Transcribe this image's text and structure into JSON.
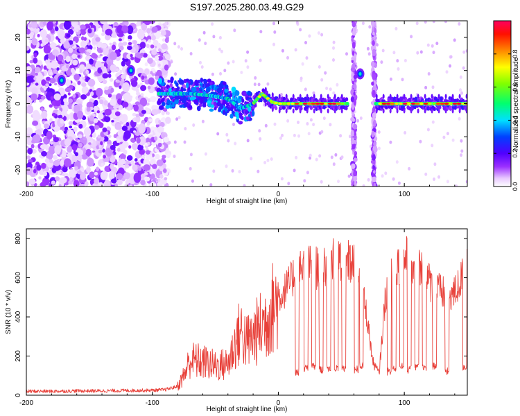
{
  "chart_data": [
    {
      "type": "heatmap",
      "title": "S197.2025.280.03.49.G29",
      "xlabel": "Height of straight line (km)",
      "ylabel": "Frequency (Hz)",
      "xlim": [
        -200,
        150
      ],
      "ylim": [
        -25,
        25
      ],
      "x_ticks": [
        -200,
        -100,
        0,
        100
      ],
      "y_ticks": [
        -20,
        -10,
        0,
        10,
        20
      ],
      "colorbar": {
        "label": "Normalized spectral amplitude",
        "range": [
          0,
          1
        ],
        "ticks": [
          "0.0",
          "0.2",
          "0.4",
          "0.6",
          "0.8"
        ],
        "tick_values": [
          0,
          0.2,
          0.4,
          0.6,
          0.8
        ]
      },
      "ridge": {
        "x": [
          -85,
          -70,
          -55,
          -40,
          -30,
          -20,
          -13,
          -5,
          0,
          20,
          40,
          55,
          80,
          100,
          120,
          150
        ],
        "freq": [
          3,
          3,
          2.5,
          1.5,
          -1.5,
          0,
          3,
          0.5,
          0,
          0,
          0,
          0,
          0,
          0,
          0,
          0
        ]
      },
      "noise_region_x": [
        -200,
        -95
      ],
      "vertical_streaks_x": [
        60,
        76
      ],
      "gap_x": [
        55,
        77
      ],
      "isolated_blobs": [
        {
          "x": -172,
          "freq": 7
        },
        {
          "x": -117,
          "freq": 10
        },
        {
          "x": 65,
          "freq": 9
        }
      ]
    },
    {
      "type": "line",
      "xlabel": "Height of straight line (km)",
      "ylabel": "SNR (10 * v/v)",
      "xlim": [
        -200,
        150
      ],
      "ylim": [
        0,
        850
      ],
      "x_ticks": [
        -200,
        -100,
        0,
        100
      ],
      "y_ticks": [
        0,
        200,
        400,
        600,
        800
      ],
      "series": [
        {
          "name": "SNR",
          "color": "#e8413a",
          "x": [
            -200,
            -180,
            -160,
            -140,
            -120,
            -100,
            -90,
            -80,
            -75,
            -70,
            -60,
            -50,
            -40,
            -35,
            -30,
            -25,
            -20,
            -15,
            -10,
            -5,
            0,
            10,
            15,
            20,
            30,
            40,
            50,
            60,
            65,
            70,
            75,
            80,
            85,
            90,
            100,
            110,
            120,
            130,
            140,
            150
          ],
          "y": [
            20,
            20,
            22,
            22,
            24,
            25,
            28,
            45,
            100,
            180,
            170,
            150,
            160,
            250,
            330,
            270,
            300,
            340,
            380,
            440,
            490,
            580,
            650,
            660,
            650,
            680,
            690,
            670,
            580,
            420,
            170,
            110,
            500,
            650,
            700,
            670,
            580,
            520,
            520,
            660
          ]
        }
      ],
      "dips_x": [
        15,
        22,
        28,
        34,
        40,
        46,
        52,
        62,
        66,
        88,
        92,
        98,
        104,
        110,
        116,
        124,
        134,
        148
      ],
      "dips_y": [
        120,
        140,
        145,
        130,
        140,
        135,
        135,
        130,
        150,
        120,
        140,
        150,
        130,
        145,
        140,
        150,
        120,
        145
      ]
    }
  ]
}
